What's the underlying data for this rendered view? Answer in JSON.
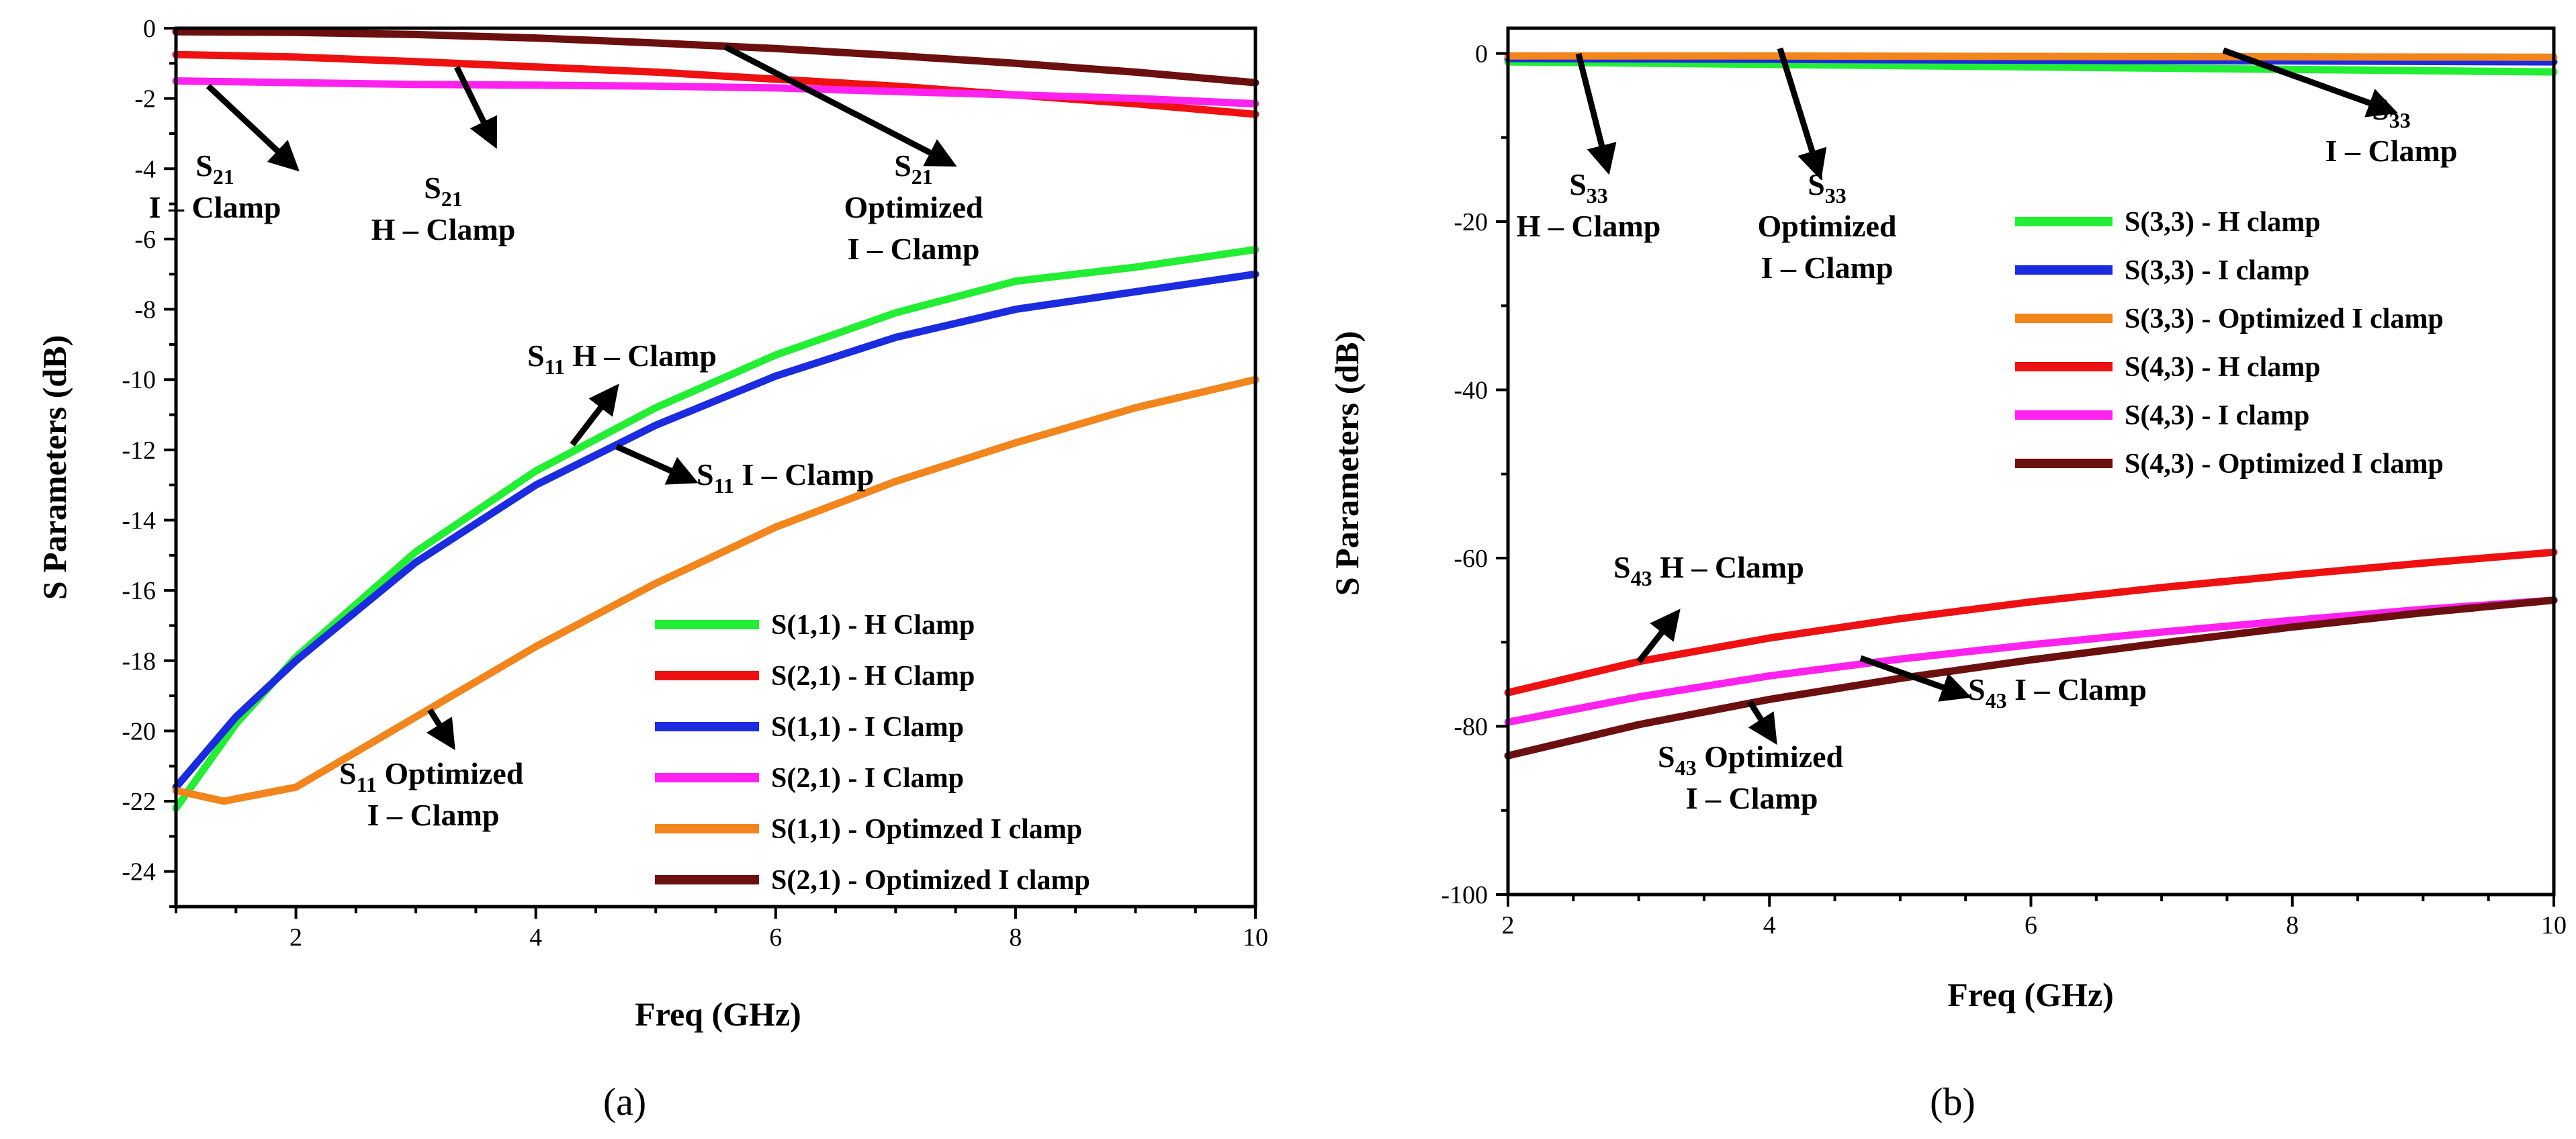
{
  "chart_data": [
    {
      "type": "line",
      "panel_label": "(a)",
      "xlabel": "Freq (GHz)",
      "ylabel": "S Parameters (dB)",
      "xlim": [
        1,
        10
      ],
      "ylim": [
        -25,
        0
      ],
      "x_ticks": [
        2,
        4,
        6,
        8,
        10
      ],
      "y_ticks": [
        0,
        -2,
        -4,
        -6,
        -8,
        -10,
        -12,
        -14,
        -16,
        -18,
        -20,
        -22,
        -24
      ],
      "legend_position": "bottom-right",
      "series": [
        {
          "name": "S(1,1) - H Clamp",
          "color": "#22ee33",
          "x": [
            1,
            1.5,
            2,
            3,
            4,
            5,
            6,
            7,
            8,
            9,
            10
          ],
          "y": [
            -22.2,
            -19.8,
            -17.9,
            -14.9,
            -12.6,
            -10.8,
            -9.3,
            -8.1,
            -7.2,
            -6.8,
            -6.3
          ]
        },
        {
          "name": "S(2,1) - H Clamp",
          "color": "#ee1111",
          "x": [
            1,
            2,
            3,
            4,
            5,
            6,
            7,
            8,
            9,
            10
          ],
          "y": [
            -0.75,
            -0.82,
            -0.95,
            -1.1,
            -1.25,
            -1.45,
            -1.65,
            -1.9,
            -2.15,
            -2.45
          ]
        },
        {
          "name": "S(1,1) - I Clamp",
          "color": "#1a2be0",
          "x": [
            1,
            1.5,
            2,
            3,
            4,
            5,
            6,
            7,
            8,
            9,
            10
          ],
          "y": [
            -21.6,
            -19.6,
            -18.0,
            -15.2,
            -13.0,
            -11.3,
            -9.9,
            -8.8,
            -8.0,
            -7.5,
            -7.0
          ]
        },
        {
          "name": "S(2,1)  - I Clamp",
          "color": "#ff22ee",
          "x": [
            1,
            2,
            3,
            4,
            5,
            6,
            7,
            8,
            9,
            10
          ],
          "y": [
            -1.5,
            -1.55,
            -1.6,
            -1.62,
            -1.65,
            -1.7,
            -1.8,
            -1.9,
            -2.0,
            -2.15
          ]
        },
        {
          "name": "S(1,1)  - Optimzed I clamp",
          "color": "#f2851c",
          "x": [
            1,
            1.4,
            2,
            3,
            4,
            5,
            6,
            7,
            8,
            9,
            10
          ],
          "y": [
            -21.7,
            -22.0,
            -21.6,
            -19.6,
            -17.6,
            -15.8,
            -14.2,
            -12.9,
            -11.8,
            -10.8,
            -10.0
          ]
        },
        {
          "name": "S(2,1) -  Optimized I clamp",
          "color": "#6b0f0f",
          "x": [
            1,
            2,
            3,
            4,
            5,
            6,
            7,
            8,
            9,
            10
          ],
          "y": [
            -0.1,
            -0.12,
            -0.18,
            -0.28,
            -0.42,
            -0.58,
            -0.78,
            -1.0,
            -1.25,
            -1.55
          ]
        }
      ],
      "annotations": [
        {
          "main": "S",
          "sub": "21",
          "lines": [
            "I – Clamp"
          ]
        },
        {
          "main": "S",
          "sub": "21",
          "lines": [
            "H – Clamp"
          ]
        },
        {
          "main": "S",
          "sub": "21",
          "lines": [
            "Optimized",
            "I – Clamp"
          ]
        },
        {
          "main": "S",
          "sub": "11",
          "after": " H – Clamp",
          "lines": []
        },
        {
          "main": "S",
          "sub": "11",
          "after": "  I – Clamp",
          "lines": []
        },
        {
          "main": "S",
          "sub": "11",
          "after": "  Optimized",
          "lines": [
            "I – Clamp"
          ]
        }
      ]
    },
    {
      "type": "line",
      "panel_label": "(b)",
      "xlabel": "Freq (GHz)",
      "ylabel": "S Parameters (dB)",
      "xlim": [
        2,
        10
      ],
      "ylim": [
        -100,
        3
      ],
      "x_ticks": [
        2,
        4,
        6,
        8,
        10
      ],
      "y_ticks": [
        0,
        -20,
        -40,
        -60,
        -80,
        -100
      ],
      "legend_position": "top-right",
      "series": [
        {
          "name": "S(3,3) - H clamp",
          "color": "#22ee33",
          "x": [
            2,
            4,
            6,
            8,
            10
          ],
          "y": [
            -1.0,
            -1.3,
            -1.6,
            -1.9,
            -2.2
          ]
        },
        {
          "name": "S(3,3) - I clamp",
          "color": "#1a2be0",
          "x": [
            2,
            4,
            6,
            8,
            10
          ],
          "y": [
            -0.6,
            -0.7,
            -0.8,
            -0.9,
            -1.0
          ]
        },
        {
          "name": "S(3,3) - Optimized I clamp",
          "color": "#f2851c",
          "x": [
            2,
            4,
            6,
            8,
            10
          ],
          "y": [
            -0.3,
            -0.3,
            -0.35,
            -0.4,
            -0.45
          ]
        },
        {
          "name": "S(4,3) - H clamp",
          "color": "#ee1111",
          "x": [
            2,
            3,
            4,
            5,
            6,
            7,
            8,
            9,
            10
          ],
          "y": [
            -76,
            -72.3,
            -69.5,
            -67.2,
            -65.2,
            -63.5,
            -62.0,
            -60.6,
            -59.3
          ]
        },
        {
          "name": "S(4,3) - I clamp",
          "color": "#ff22ee",
          "x": [
            2,
            3,
            4,
            5,
            6,
            7,
            8,
            9,
            10
          ],
          "y": [
            -79.5,
            -76.5,
            -74.0,
            -72.0,
            -70.3,
            -68.8,
            -67.4,
            -66.1,
            -65.0
          ]
        },
        {
          "name": "S(4,3) - Optimized I clamp",
          "color": "#6b0f0f",
          "x": [
            2,
            3,
            4,
            5,
            6,
            7,
            8,
            9,
            10
          ],
          "y": [
            -83.5,
            -79.8,
            -76.8,
            -74.3,
            -72.1,
            -70.1,
            -68.2,
            -66.5,
            -65.0
          ]
        }
      ],
      "annotations": [
        {
          "main": "S",
          "sub": "33",
          "lines": [
            "H – Clamp"
          ]
        },
        {
          "main": "S",
          "sub": "33",
          "lines": [
            "Optimized",
            "I – Clamp"
          ]
        },
        {
          "main": "S",
          "sub": "33",
          "lines": [
            "I – Clamp"
          ]
        },
        {
          "main": "S",
          "sub": "43",
          "after": " H – Clamp",
          "lines": []
        },
        {
          "main": "S",
          "sub": "43",
          "after": "  I – Clamp",
          "lines": []
        },
        {
          "main": "S",
          "sub": "43",
          "after": "  Optimized",
          "lines": [
            "I – Clamp"
          ]
        }
      ]
    }
  ],
  "colors": {
    "axis": "#000000",
    "arrow": "#000000",
    "background": "#ffffff"
  }
}
